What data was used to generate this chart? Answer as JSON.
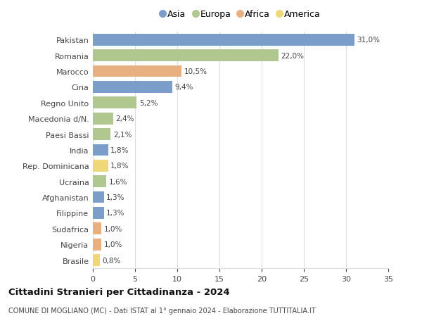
{
  "categories": [
    "Pakistan",
    "Romania",
    "Marocco",
    "Cina",
    "Regno Unito",
    "Macedonia d/N.",
    "Paesi Bassi",
    "India",
    "Rep. Dominicana",
    "Ucraina",
    "Afghanistan",
    "Filippine",
    "Sudafrica",
    "Nigeria",
    "Brasile"
  ],
  "values": [
    31.0,
    22.0,
    10.5,
    9.4,
    5.2,
    2.4,
    2.1,
    1.8,
    1.8,
    1.6,
    1.3,
    1.3,
    1.0,
    1.0,
    0.8
  ],
  "continents": [
    "Asia",
    "Europa",
    "Africa",
    "Asia",
    "Europa",
    "Europa",
    "Europa",
    "Asia",
    "America",
    "Europa",
    "Asia",
    "Asia",
    "Africa",
    "Africa",
    "America"
  ],
  "colors": {
    "Asia": "#7b9dc9",
    "Europa": "#b0c890",
    "Africa": "#e8b080",
    "America": "#f0d878"
  },
  "legend_order": [
    "Asia",
    "Europa",
    "Africa",
    "America"
  ],
  "xlim": [
    0,
    35
  ],
  "xticks": [
    0,
    5,
    10,
    15,
    20,
    25,
    30,
    35
  ],
  "title": "Cittadini Stranieri per Cittadinanza - 2024",
  "subtitle": "COMUNE DI MOGLIANO (MC) - Dati ISTAT al 1° gennaio 2024 - Elaborazione TUTTITALIA.IT",
  "background_color": "#ffffff",
  "grid_color": "#dddddd",
  "bar_height": 0.75,
  "label_fontsize": 7.5,
  "tick_fontsize": 8.0,
  "legend_fontsize": 9.0,
  "title_fontsize": 9.5,
  "subtitle_fontsize": 7.0
}
